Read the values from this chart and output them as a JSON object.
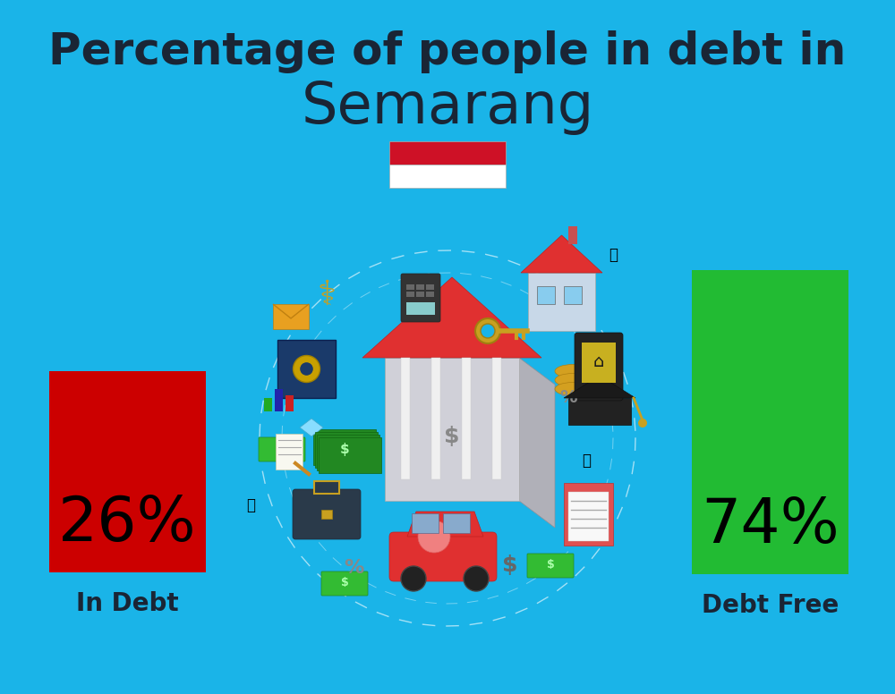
{
  "title_line1": "Percentage of people in debt in",
  "title_line2": "Semarang",
  "background_color": "#1ab4e8",
  "bar_in_debt_pct": "26%",
  "bar_debt_free_pct": "74%",
  "bar_in_debt_color": "#cc0000",
  "bar_debt_free_color": "#22bb33",
  "label_in_debt": "In Debt",
  "label_debt_free": "Debt Free",
  "text_color_dark": "#1a2535",
  "flag_red": "#ce1126",
  "flag_white": "#ffffff",
  "title_fs": 36,
  "semarang_fs": 46,
  "pct_fs": 50,
  "label_fs": 20
}
